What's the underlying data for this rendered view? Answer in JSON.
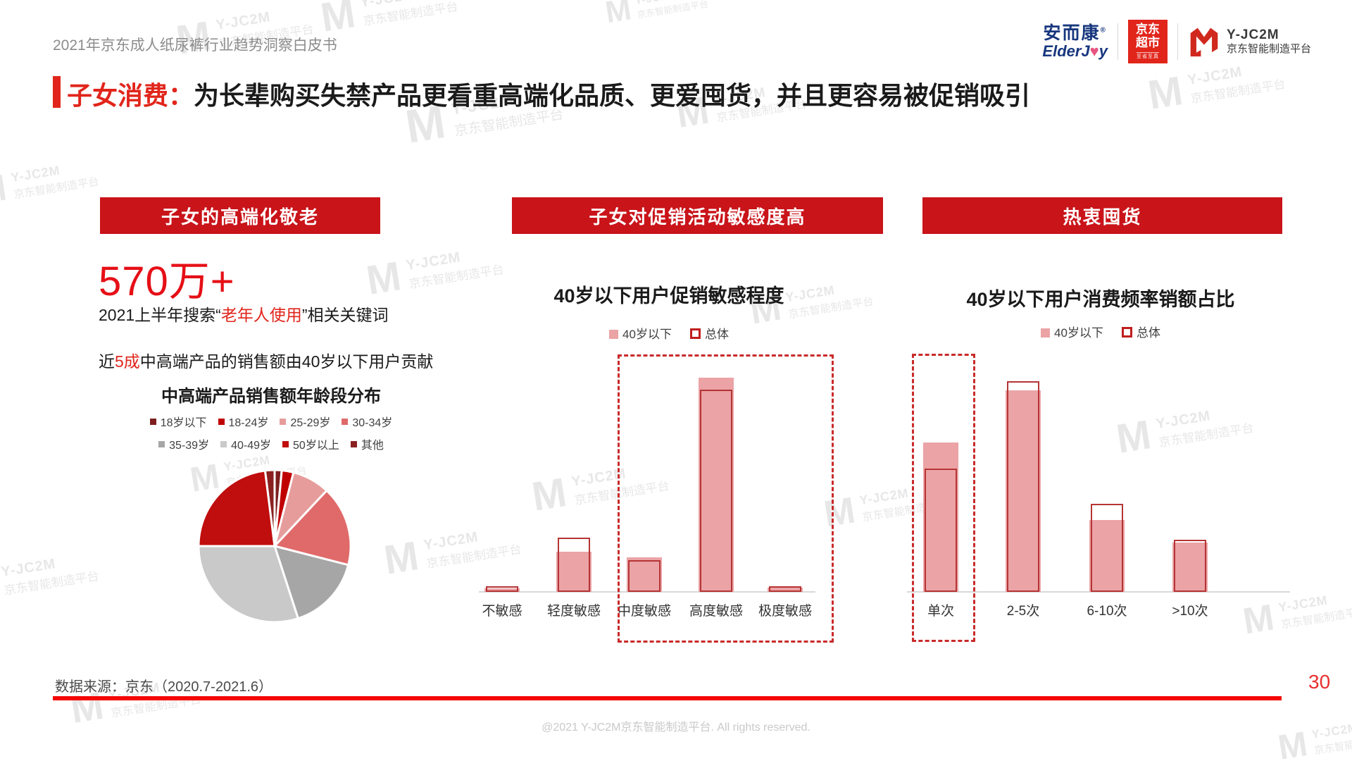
{
  "header": {
    "doc_title": "2021年京东成人纸尿裤行业趋势洞察白皮书",
    "brand_elderjoy": {
      "cn": "安而康",
      "reg": "®",
      "en_pre": "ElderJ",
      "heart": "♥",
      "en_post": "y"
    },
    "brand_jd_market": {
      "line1": "京东",
      "line2": "超市",
      "sub": "至省至真"
    },
    "brand_yjc2m": {
      "name": "Y-JC2M",
      "sub": "京东智能制造平台"
    }
  },
  "title": {
    "label": "子女消费：",
    "text": "为长辈购买失禁产品更看重高端化品质、更爱囤货，并且更容易被促销吸引"
  },
  "sections": {
    "left_banner": "子女的高端化敬老",
    "mid_banner": "子女对促销活动敏感度高",
    "right_banner": "热衷囤货"
  },
  "left": {
    "stat": "570万+",
    "stat_desc_pre": "2021上半年搜索“",
    "stat_desc_red": "老年人使用",
    "stat_desc_post": "”相关关键词",
    "line_pre": "近",
    "line_red": "5成",
    "line_post": "中高端产品的销售额由40岁以下用户贡献"
  },
  "chart_data": [
    {
      "id": "age-distribution-pie",
      "type": "pie",
      "title": "中高端产品销售额年龄段分布",
      "categories": [
        "18岁以下",
        "18-24岁",
        "25-29岁",
        "30-34岁",
        "35-39岁",
        "40-49岁",
        "50岁以上",
        "其他"
      ],
      "values": [
        1.5,
        2.5,
        8,
        17,
        16,
        30,
        23,
        2
      ],
      "colors": [
        "#7d1f1f",
        "#c00000",
        "#e79c9c",
        "#e06a6a",
        "#a6a6a6",
        "#c9c9c9",
        "#c00d0d",
        "#8b2020"
      ],
      "note": "values estimated from slice angles, percent",
      "legend_position": "top"
    },
    {
      "id": "promo-sensitivity-bar",
      "type": "bar",
      "title": "40岁以下用户促销敏感程度",
      "categories": [
        "不敏感",
        "轻度敏感",
        "中度敏感",
        "高度敏感",
        "极度敏感"
      ],
      "series": [
        {
          "name": "40岁以下",
          "style": "filled",
          "color": "#eba3a6",
          "values": [
            1.2,
            13.4,
            11.5,
            71.5,
            1.4
          ]
        },
        {
          "name": "总体",
          "style": "outlined",
          "color": "#b53434",
          "values": [
            1.9,
            18.1,
            10.6,
            67.5,
            1.9
          ]
        }
      ],
      "ylim": [
        0,
        80
      ],
      "grid": false,
      "highlight_box_categories": [
        "中度敏感",
        "高度敏感",
        "极度敏感"
      ],
      "note": "values estimated from bar heights, percent"
    },
    {
      "id": "purchase-frequency-bar",
      "type": "bar",
      "title": "40岁以下用户消费频率销额占比",
      "categories": [
        "单次",
        "2-5次",
        "6-10次",
        ">10次"
      ],
      "series": [
        {
          "name": "40岁以下",
          "style": "filled",
          "color": "#eba3a6",
          "values": [
            30,
            40.4,
            14.4,
            9.9
          ]
        },
        {
          "name": "总体",
          "style": "outlined",
          "color": "#b53434",
          "values": [
            24.7,
            42.2,
            17.6,
            10.4
          ]
        }
      ],
      "ylim": [
        0,
        48
      ],
      "grid": false,
      "highlight_box_categories": [
        "单次"
      ],
      "note": "values estimated from bar heights, percent"
    }
  ],
  "footer": {
    "source": "数据来源：京东（2020.7-2021.6）",
    "page": "30",
    "copyright": "@2021 Y-JC2M京东智能制造平台. All rights reserved."
  },
  "watermark": {
    "line1": "Y-JC2M",
    "line2": "京东智能制造平台",
    "mark": "M"
  },
  "colors": {
    "banner_red": "#c9141a",
    "accent_red": "#e1251b",
    "stat_red": "#e60f16",
    "bar_fill": "#eba3a6",
    "bar_outline": "#b53434",
    "dashed_red": "#c92a2a",
    "axis_gray": "#d9d9d9",
    "jd_red": "#e1251b",
    "brand_blue": "#17377e",
    "heart_pink": "#e75480",
    "bottom_line": "#f50505",
    "page_red": "#e8302f",
    "text_gray": "#8c8c8c",
    "wm_gray": "#e7e7e7",
    "copy_gray": "#c9c9c9"
  }
}
